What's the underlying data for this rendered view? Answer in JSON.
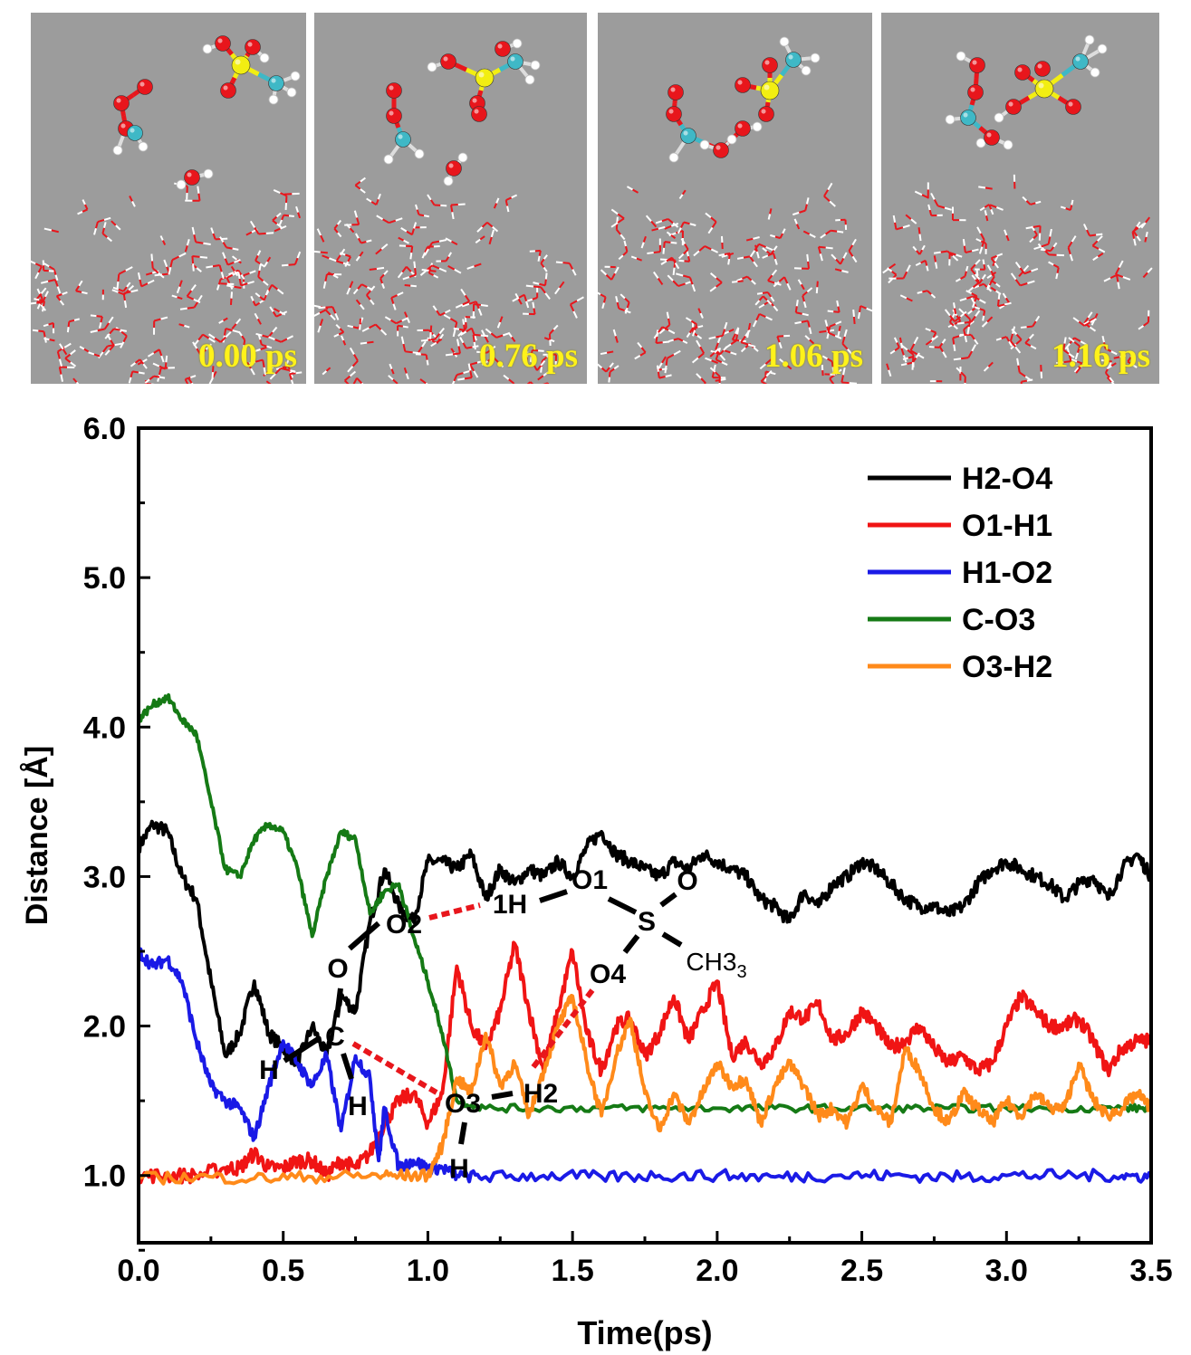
{
  "snapshots": [
    {
      "label": "0.00 ps"
    },
    {
      "label": "0.76 ps"
    },
    {
      "label": "1.06 ps"
    },
    {
      "label": "1.16 ps"
    }
  ],
  "colors": {
    "panel_bg": "#9c9c9c",
    "oxygen": "#e8161c",
    "hydrogen": "#ffffff",
    "sulfur": "#f2ee12",
    "carbon": "#3fb8c6",
    "time_label": "#fff21a"
  },
  "scheme": {
    "atoms": [
      "O2",
      "1H",
      "O1",
      "O",
      "S",
      "CH3",
      "O",
      "O4",
      "C",
      "H",
      "H",
      "O3",
      "H2",
      "H"
    ],
    "dashed_bonds": [
      "O2-1H",
      "O4-H2",
      "C-O3"
    ],
    "dash_color": "#e8161c"
  },
  "chart_data": {
    "type": "line",
    "xlabel": "Time(ps)",
    "ylabel": "Distance [Å]",
    "xlim": [
      0.0,
      3.5
    ],
    "ylim": [
      0.55,
      6.0
    ],
    "xticks": [
      "0.0",
      "0.5",
      "1.0",
      "1.5",
      "2.0",
      "2.5",
      "3.0",
      "3.5"
    ],
    "yticks": [
      "1.0",
      "2.0",
      "3.0",
      "4.0",
      "5.0",
      "6.0"
    ],
    "legend_position": "top-right",
    "grid": false,
    "series": [
      {
        "name": "H2-O4",
        "color": "#000000",
        "x": [
          0.0,
          0.05,
          0.1,
          0.15,
          0.2,
          0.25,
          0.3,
          0.35,
          0.4,
          0.45,
          0.5,
          0.55,
          0.6,
          0.65,
          0.7,
          0.75,
          0.8,
          0.85,
          0.9,
          0.95,
          1.0,
          1.05,
          1.1,
          1.15,
          1.2,
          1.25,
          1.3,
          1.35,
          1.4,
          1.45,
          1.5,
          1.55,
          1.6,
          1.65,
          1.7,
          1.75,
          1.8,
          1.85,
          1.9,
          1.95,
          2.0,
          2.05,
          2.1,
          2.15,
          2.2,
          2.25,
          2.3,
          2.35,
          2.4,
          2.45,
          2.5,
          2.55,
          2.6,
          2.65,
          2.7,
          2.75,
          2.8,
          2.85,
          2.9,
          2.95,
          3.0,
          3.05,
          3.1,
          3.15,
          3.2,
          3.25,
          3.3,
          3.35,
          3.4,
          3.45,
          3.5
        ],
        "y": [
          3.2,
          3.35,
          3.3,
          3.0,
          2.85,
          2.3,
          1.8,
          1.95,
          2.3,
          1.95,
          1.85,
          1.75,
          2.0,
          1.8,
          2.2,
          2.1,
          2.7,
          3.05,
          2.8,
          2.7,
          3.1,
          3.1,
          3.05,
          3.15,
          2.85,
          3.05,
          2.95,
          3.05,
          3.0,
          3.1,
          3.0,
          3.2,
          3.3,
          3.15,
          3.1,
          3.05,
          3.0,
          3.1,
          3.05,
          3.15,
          3.1,
          3.05,
          3.0,
          2.85,
          2.8,
          2.7,
          2.9,
          2.8,
          2.95,
          3.0,
          3.1,
          3.05,
          2.95,
          2.85,
          2.8,
          2.8,
          2.75,
          2.8,
          2.95,
          3.05,
          3.1,
          3.05,
          3.0,
          2.95,
          2.85,
          2.95,
          3.0,
          2.85,
          3.05,
          3.15,
          3.0
        ]
      },
      {
        "name": "O1-H1",
        "color": "#f01414",
        "x": [
          0.0,
          0.1,
          0.2,
          0.3,
          0.35,
          0.4,
          0.45,
          0.5,
          0.55,
          0.6,
          0.65,
          0.7,
          0.75,
          0.8,
          0.85,
          0.9,
          0.95,
          1.0,
          1.05,
          1.1,
          1.15,
          1.2,
          1.25,
          1.3,
          1.35,
          1.4,
          1.45,
          1.5,
          1.55,
          1.6,
          1.65,
          1.7,
          1.75,
          1.8,
          1.85,
          1.9,
          1.95,
          2.0,
          2.05,
          2.1,
          2.15,
          2.2,
          2.25,
          2.3,
          2.35,
          2.4,
          2.45,
          2.5,
          2.55,
          2.6,
          2.65,
          2.7,
          2.75,
          2.8,
          2.85,
          2.9,
          2.95,
          3.0,
          3.05,
          3.1,
          3.15,
          3.2,
          3.25,
          3.3,
          3.35,
          3.4,
          3.45,
          3.5
        ],
        "y": [
          1.0,
          1.0,
          1.0,
          1.05,
          1.05,
          1.15,
          1.05,
          1.05,
          1.1,
          1.1,
          1.0,
          1.1,
          1.05,
          1.15,
          1.35,
          1.5,
          1.55,
          1.35,
          1.55,
          2.4,
          2.0,
          1.85,
          2.1,
          2.55,
          2.1,
          1.7,
          2.1,
          2.5,
          1.95,
          1.7,
          2.0,
          2.05,
          1.8,
          1.95,
          2.2,
          1.9,
          2.1,
          2.3,
          1.8,
          1.9,
          1.75,
          1.85,
          2.1,
          2.05,
          2.15,
          1.9,
          1.95,
          2.1,
          2.0,
          1.85,
          1.9,
          2.0,
          1.85,
          1.75,
          1.8,
          1.7,
          1.75,
          2.0,
          2.2,
          2.1,
          2.0,
          2.0,
          2.05,
          1.9,
          1.7,
          1.85,
          1.9,
          1.9
        ]
      },
      {
        "name": "H1-O2",
        "color": "#1a1ae6",
        "x": [
          0.0,
          0.05,
          0.1,
          0.15,
          0.2,
          0.25,
          0.3,
          0.35,
          0.4,
          0.45,
          0.5,
          0.55,
          0.6,
          0.65,
          0.7,
          0.75,
          0.8,
          0.83,
          0.85,
          0.9,
          0.95,
          1.0,
          1.05,
          1.1,
          1.2,
          1.4,
          1.6,
          1.8,
          2.0,
          2.2,
          2.4,
          2.6,
          2.8,
          3.0,
          3.2,
          3.4,
          3.5
        ],
        "y": [
          2.5,
          2.4,
          2.45,
          2.3,
          1.9,
          1.6,
          1.5,
          1.45,
          1.25,
          1.6,
          1.9,
          1.75,
          1.6,
          1.8,
          1.3,
          1.8,
          1.65,
          1.1,
          1.45,
          1.05,
          1.1,
          1.05,
          1.05,
          1.0,
          0.99,
          1.0,
          0.99,
          1.0,
          1.0,
          0.99,
          1.0,
          1.0,
          0.99,
          1.0,
          1.0,
          1.0,
          0.99
        ]
      },
      {
        "name": "C-O3",
        "color": "#157a15",
        "x": [
          0.0,
          0.05,
          0.1,
          0.15,
          0.2,
          0.25,
          0.3,
          0.35,
          0.4,
          0.45,
          0.5,
          0.55,
          0.6,
          0.65,
          0.7,
          0.75,
          0.8,
          0.85,
          0.9,
          0.95,
          1.0,
          1.05,
          1.1,
          1.2,
          1.4,
          1.6,
          1.8,
          2.0,
          2.2,
          2.4,
          2.6,
          2.8,
          3.0,
          3.2,
          3.4,
          3.5
        ],
        "y": [
          4.05,
          4.15,
          4.2,
          4.05,
          3.95,
          3.5,
          3.05,
          3.0,
          3.25,
          3.35,
          3.3,
          3.05,
          2.6,
          3.0,
          3.3,
          3.25,
          2.75,
          2.9,
          2.95,
          2.6,
          2.3,
          1.95,
          1.5,
          1.45,
          1.45,
          1.45,
          1.45,
          1.45,
          1.45,
          1.45,
          1.45,
          1.45,
          1.45,
          1.45,
          1.45,
          1.45
        ]
      },
      {
        "name": "O3-H2",
        "color": "#ff8a1a",
        "x": [
          0.0,
          0.2,
          0.4,
          0.6,
          0.8,
          0.9,
          1.0,
          1.05,
          1.1,
          1.15,
          1.2,
          1.25,
          1.3,
          1.35,
          1.4,
          1.45,
          1.5,
          1.55,
          1.6,
          1.65,
          1.7,
          1.75,
          1.8,
          1.85,
          1.9,
          1.95,
          2.0,
          2.05,
          2.1,
          2.15,
          2.2,
          2.25,
          2.3,
          2.35,
          2.4,
          2.45,
          2.5,
          2.55,
          2.6,
          2.65,
          2.7,
          2.75,
          2.8,
          2.85,
          2.9,
          2.95,
          3.0,
          3.05,
          3.1,
          3.15,
          3.2,
          3.25,
          3.3,
          3.35,
          3.4,
          3.45,
          3.5
        ],
        "y": [
          0.98,
          0.99,
          0.98,
          0.99,
          1.0,
          1.0,
          1.0,
          1.2,
          1.65,
          1.55,
          1.95,
          1.6,
          1.75,
          1.4,
          1.7,
          2.0,
          2.2,
          1.75,
          1.4,
          1.8,
          2.05,
          1.55,
          1.3,
          1.55,
          1.35,
          1.55,
          1.75,
          1.6,
          1.65,
          1.35,
          1.6,
          1.75,
          1.6,
          1.4,
          1.45,
          1.35,
          1.6,
          1.45,
          1.35,
          1.85,
          1.7,
          1.45,
          1.35,
          1.55,
          1.45,
          1.35,
          1.5,
          1.4,
          1.55,
          1.45,
          1.45,
          1.75,
          1.5,
          1.4,
          1.45,
          1.55,
          1.45
        ]
      }
    ]
  }
}
